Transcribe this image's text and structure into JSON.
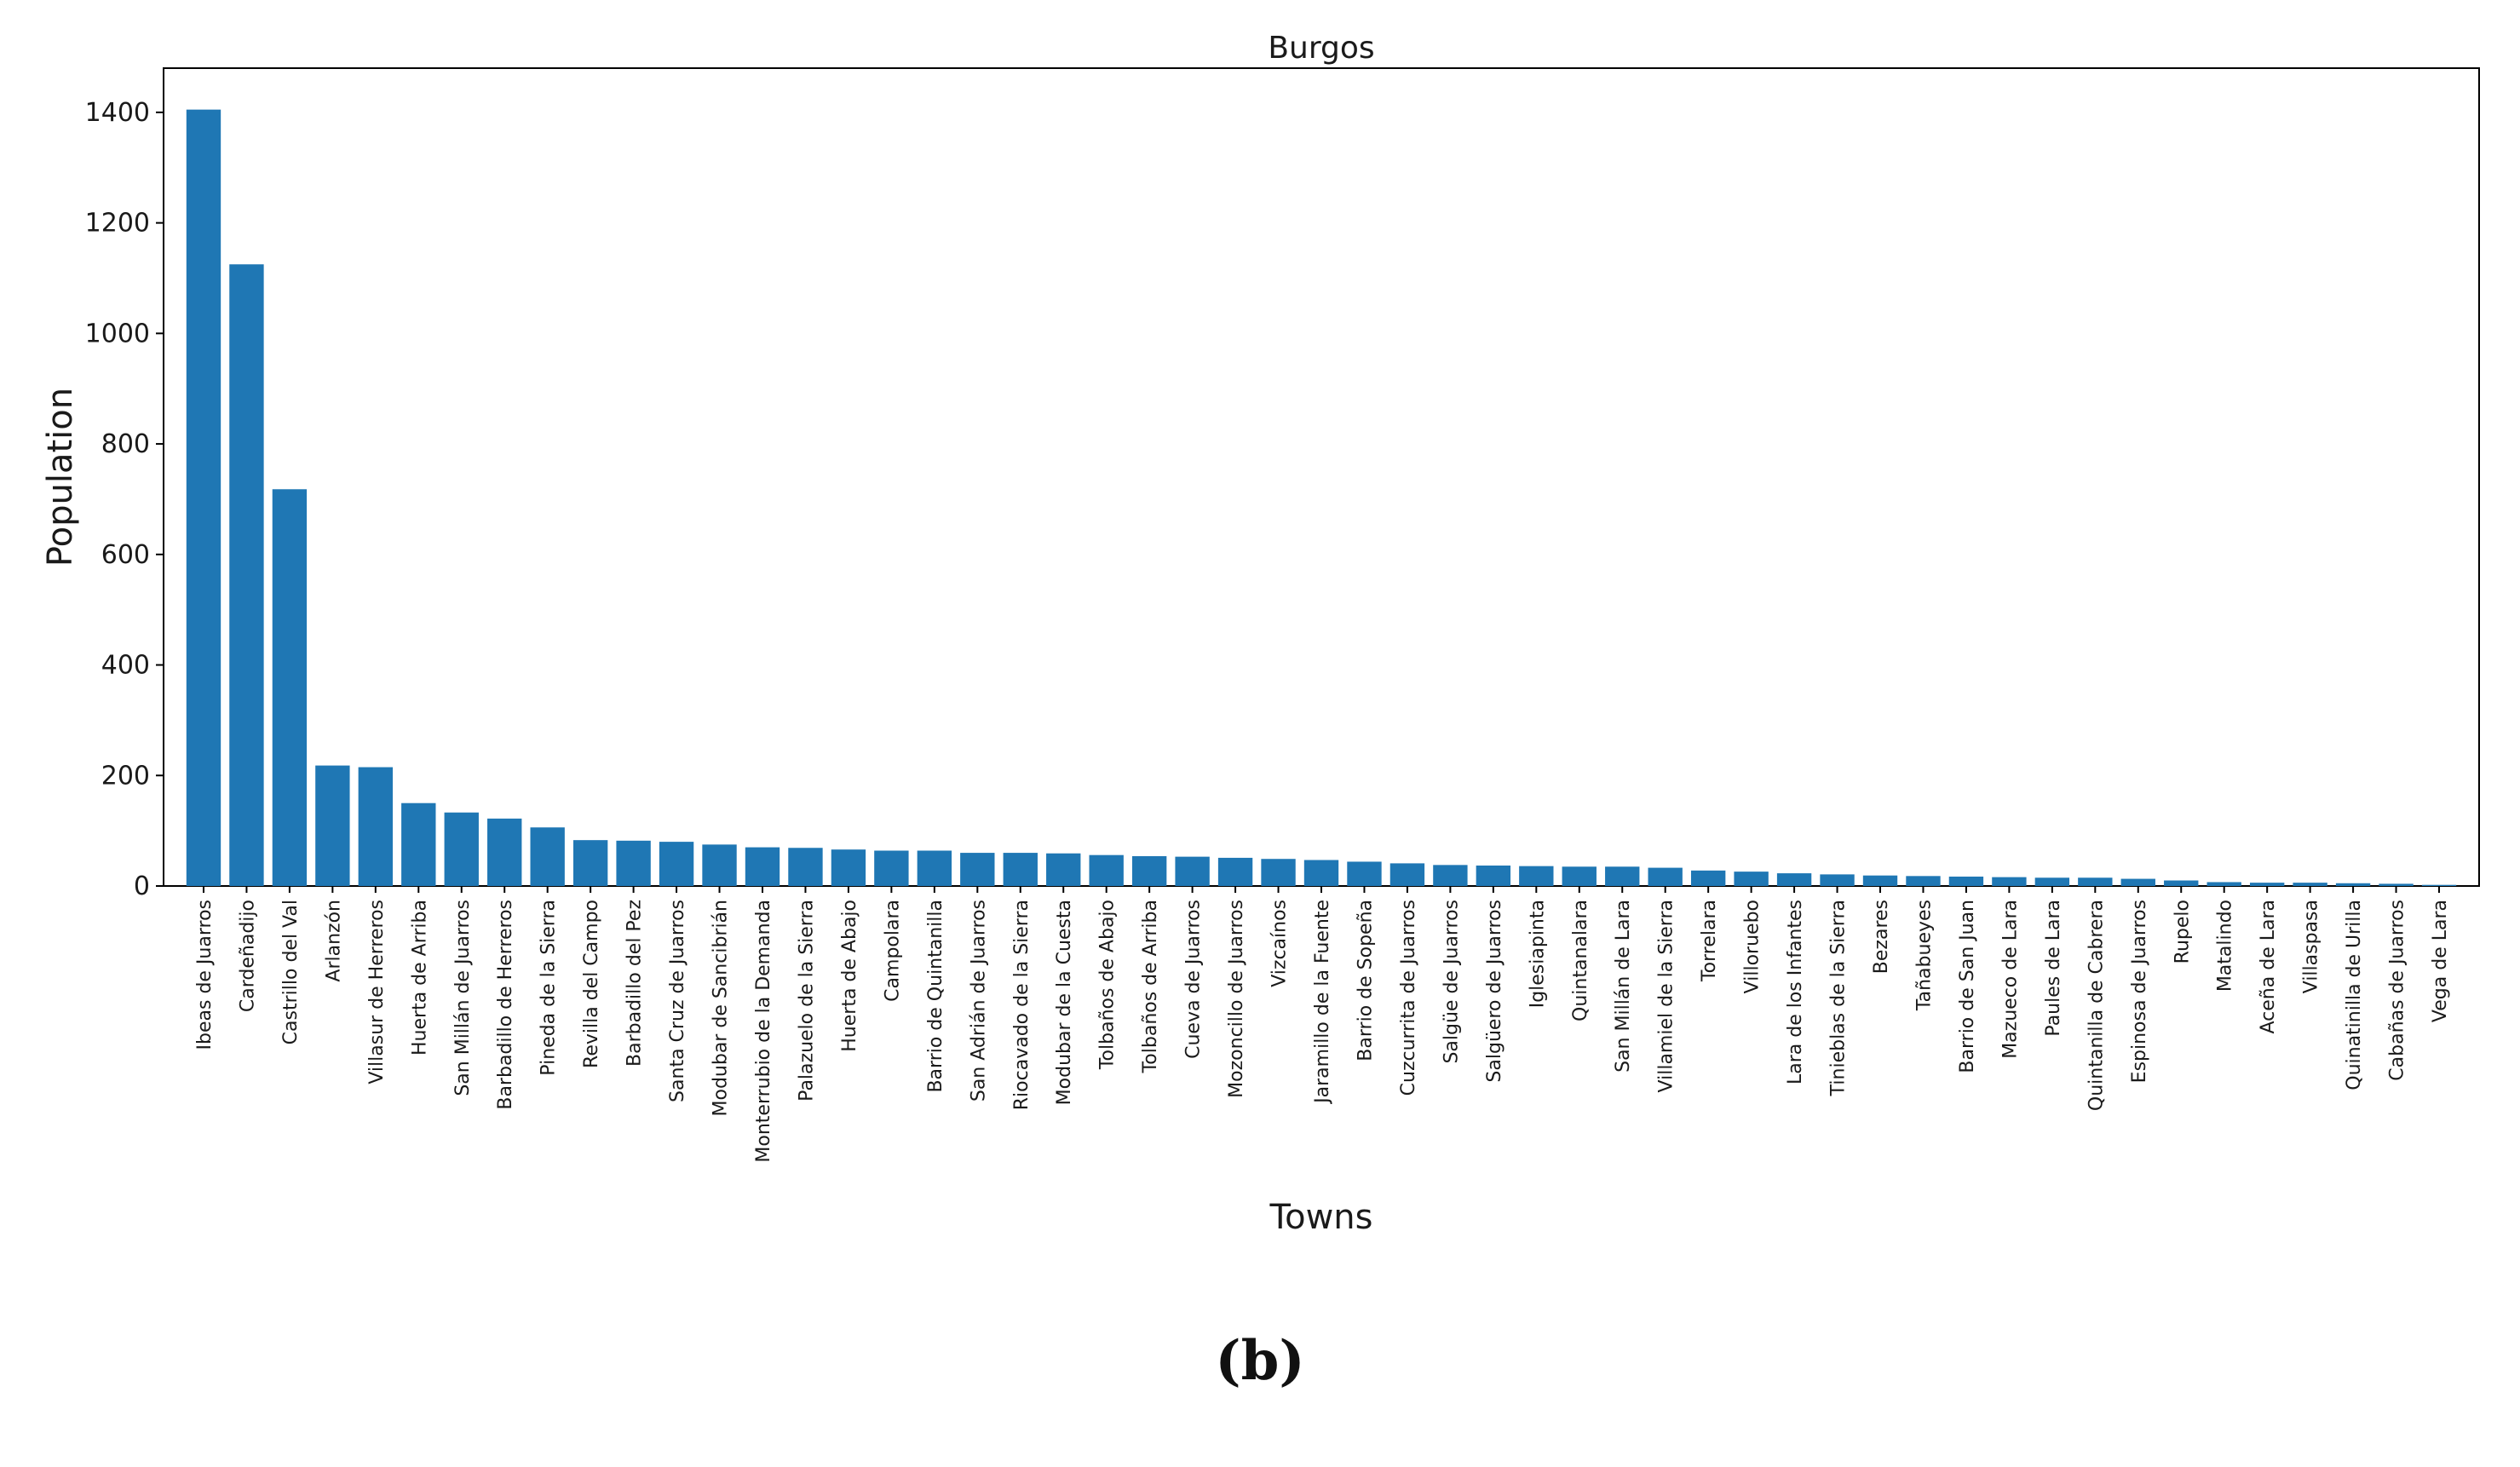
{
  "chart_data": {
    "type": "bar",
    "title": "Burgos",
    "xlabel": "Towns",
    "ylabel": "Population",
    "ylim": [
      0,
      1480
    ],
    "yticks": [
      0,
      200,
      400,
      600,
      800,
      1000,
      1200,
      1400
    ],
    "color": "#1f77b4",
    "grid": false,
    "categories": [
      "Ibeas de Juarros",
      "Cardeñadijo",
      "Castrillo del Val",
      "Arlanzón",
      "Villasur de Herreros",
      "Huerta de Arriba",
      "San Millán de Juarros",
      "Barbadillo de Herreros",
      "Pineda de la Sierra",
      "Revilla del Campo",
      "Barbadillo del Pez",
      "Santa Cruz de Juarros",
      "Modubar de Sancibrián",
      "Monterrubio de la Demanda",
      "Palazuelo de la Sierra",
      "Huerta de Abajo",
      "Campolara",
      "Barrio de Quintanilla",
      "San Adrián de Juarros",
      "Riocavado de la Sierra",
      "Modubar de la Cuesta",
      "Tolbaños de Abajo",
      "Tolbaños de Arriba",
      "Cueva de Juarros",
      "Mozoncillo de Juarros",
      "Vizcaínos",
      "Jaramillo de la Fuente",
      "Barrio de Sopeña",
      "Cuzcurrita de Juarros",
      "Salgüe de Juarros",
      "Salgüero de Juarros",
      "Iglesiapinta",
      "Quintanalara",
      "San Millán de Lara",
      "Villamiel de la Sierra",
      "Torrelara",
      "Villoruebo",
      "Lara de los Infantes",
      "Tinieblas de la Sierra",
      "Bezares",
      "Tañabueyes",
      "Barrio de San Juan",
      "Mazueco de Lara",
      "Paules de Lara",
      "Quintanilla de Cabrera",
      "Espinosa de Juarros",
      "Rupelo",
      "Matalindo",
      "Aceña de Lara",
      "Villaspasa",
      "Quinatinilla de Urilla",
      "Cabañas de Juarros",
      "Vega de Lara"
    ],
    "values": [
      1405,
      1125,
      718,
      218,
      215,
      150,
      133,
      122,
      106,
      83,
      82,
      80,
      75,
      70,
      69,
      66,
      64,
      64,
      60,
      60,
      59,
      56,
      54,
      53,
      51,
      49,
      47,
      44,
      41,
      38,
      37,
      36,
      35,
      35,
      33,
      28,
      26,
      23,
      21,
      19,
      18,
      17,
      16,
      15,
      15,
      13,
      10,
      7,
      6,
      6,
      5,
      4,
      2
    ]
  },
  "figure": {
    "panel_label": "(b)"
  }
}
